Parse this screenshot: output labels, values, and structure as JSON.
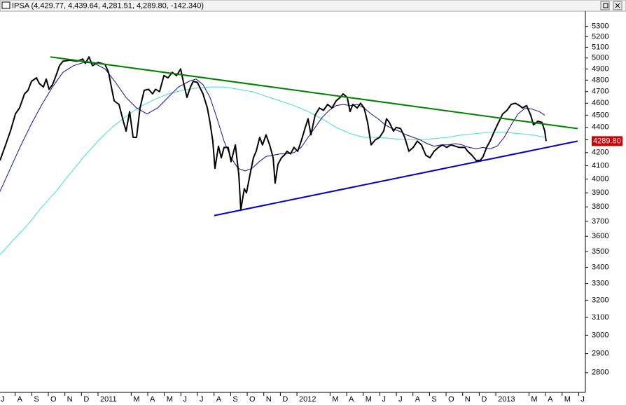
{
  "chart_data": {
    "type": "line",
    "title": "IPSA (4,429.77, 4,439.64, 4,281.51, 4,289.80, -142.340)",
    "log_scale": true,
    "ylim": [
      2700,
      5450
    ],
    "yticks": [
      2800,
      2900,
      3000,
      3100,
      3200,
      3300,
      3400,
      3500,
      3600,
      3700,
      3800,
      3900,
      4000,
      4100,
      4200,
      4300,
      4400,
      4500,
      4600,
      4700,
      4800,
      4900,
      5000,
      5100,
      5200,
      5300
    ],
    "xlim": [
      0,
      35.32
    ],
    "xticks": [
      {
        "value": 0,
        "label": "J"
      },
      {
        "value": 1,
        "label": "A"
      },
      {
        "value": 2,
        "label": "S"
      },
      {
        "value": 3,
        "label": "O"
      },
      {
        "value": 4,
        "label": "N"
      },
      {
        "value": 5,
        "label": "D"
      },
      {
        "value": 6,
        "label": "2011"
      },
      {
        "value": 8,
        "label": "M"
      },
      {
        "value": 9,
        "label": "A"
      },
      {
        "value": 10,
        "label": "M"
      },
      {
        "value": 11,
        "label": "J"
      },
      {
        "value": 12,
        "label": "J"
      },
      {
        "value": 13,
        "label": "A"
      },
      {
        "value": 14,
        "label": "S"
      },
      {
        "value": 15,
        "label": "O"
      },
      {
        "value": 16,
        "label": "N"
      },
      {
        "value": 17,
        "label": "D"
      },
      {
        "value": 18,
        "label": "2012"
      },
      {
        "value": 20,
        "label": "M"
      },
      {
        "value": 21,
        "label": "A"
      },
      {
        "value": 22,
        "label": "M"
      },
      {
        "value": 23,
        "label": "J"
      },
      {
        "value": 24,
        "label": "J"
      },
      {
        "value": 25,
        "label": "A"
      },
      {
        "value": 26,
        "label": "S"
      },
      {
        "value": 27,
        "label": "O"
      },
      {
        "value": 28,
        "label": "N"
      },
      {
        "value": 29,
        "label": "D"
      },
      {
        "value": 30,
        "label": "2013"
      },
      {
        "value": 32,
        "label": "M"
      },
      {
        "value": 33,
        "label": "A"
      },
      {
        "value": 34,
        "label": "M"
      },
      {
        "value": 35,
        "label": "J"
      }
    ],
    "price_tag": {
      "value": 4289.8,
      "label": "4289.80",
      "color": "#cc0000"
    },
    "series": [
      {
        "color": "#40e0d0",
        "width": 1,
        "x": [
          0,
          0.85,
          1.69,
          2.53,
          3.38,
          4.22,
          5.07,
          5.91,
          6.76,
          7.6,
          8.45,
          9.29,
          10.14,
          10.98,
          11.83,
          12.67,
          13.52,
          14.36,
          15.21,
          16.05,
          16.9,
          17.74,
          18.59,
          19.43,
          20.28,
          21.12,
          21.97,
          22.81,
          23.66,
          24.5,
          25.35,
          26.19,
          27.04,
          27.88,
          28.73,
          29.57,
          30.42,
          31.26,
          32.11,
          32.87
        ],
        "values": [
          3480,
          3580,
          3680,
          3800,
          3910,
          4040,
          4170,
          4290,
          4400,
          4490,
          4570,
          4630,
          4680,
          4710,
          4730,
          4740,
          4740,
          4720,
          4700,
          4660,
          4620,
          4580,
          4530,
          4470,
          4400,
          4350,
          4320,
          4320,
          4310,
          4300,
          4300,
          4310,
          4320,
          4340,
          4350,
          4360,
          4360,
          4350,
          4340,
          4320
        ]
      },
      {
        "color": "#1010a0",
        "width": 1,
        "x": [
          0,
          0.63,
          1.27,
          1.9,
          2.53,
          3.17,
          3.8,
          4.44,
          5.07,
          5.7,
          6.34,
          6.97,
          7.6,
          8.24,
          8.87,
          9.51,
          10.14,
          10.77,
          11.41,
          11.83,
          12.25,
          12.67,
          13.1,
          13.52,
          13.94,
          14.36,
          14.79,
          15.21,
          15.63,
          16.05,
          16.48,
          16.9,
          17.32,
          17.74,
          18.17,
          18.59,
          19.01,
          19.43,
          19.86,
          20.28,
          20.7,
          21.12,
          21.55,
          21.97,
          22.39,
          22.81,
          23.24,
          23.66,
          24.08,
          24.5,
          24.93,
          25.35,
          25.77,
          26.19,
          26.62,
          27.04,
          27.46,
          27.88,
          28.31,
          28.73,
          29.15,
          29.57,
          30,
          30.42,
          30.84,
          31.26,
          31.69,
          32.11,
          32.53,
          32.87
        ],
        "values": [
          3910,
          4080,
          4260,
          4430,
          4590,
          4740,
          4870,
          4930,
          4960,
          4950,
          4900,
          4780,
          4650,
          4560,
          4510,
          4560,
          4650,
          4740,
          4790,
          4810,
          4760,
          4650,
          4470,
          4290,
          4160,
          4080,
          4060,
          4080,
          4130,
          4170,
          4180,
          4190,
          4190,
          4200,
          4240,
          4320,
          4400,
          4480,
          4540,
          4580,
          4590,
          4580,
          4590,
          4560,
          4510,
          4470,
          4420,
          4390,
          4370,
          4340,
          4320,
          4300,
          4270,
          4250,
          4260,
          4260,
          4270,
          4260,
          4240,
          4230,
          4240,
          4230,
          4250,
          4320,
          4420,
          4510,
          4560,
          4550,
          4530,
          4500
        ]
      },
      {
        "color": "#000000",
        "width": 2,
        "x": [
          0,
          0.34,
          0.63,
          0.93,
          1.18,
          1.48,
          1.69,
          1.9,
          2.2,
          2.37,
          2.62,
          2.79,
          2.96,
          3.17,
          3.38,
          3.59,
          3.8,
          4.22,
          4.65,
          4.99,
          5.15,
          5.37,
          5.58,
          5.91,
          6.34,
          6.55,
          6.76,
          6.89,
          7.18,
          7.44,
          7.61,
          7.82,
          8.03,
          8.24,
          8.45,
          8.7,
          8.96,
          9.21,
          9.38,
          9.63,
          9.89,
          10.14,
          10.39,
          10.65,
          10.9,
          11.07,
          11.28,
          11.49,
          11.66,
          11.91,
          12.25,
          12.51,
          12.67,
          12.84,
          12.97,
          13.18,
          13.35,
          13.52,
          13.77,
          13.94,
          14.2,
          14.41,
          14.53,
          14.74,
          14.87,
          15.08,
          15.29,
          15.46,
          15.67,
          15.84,
          16.05,
          16.27,
          16.48,
          16.6,
          16.77,
          16.98,
          17.15,
          17.32,
          17.53,
          17.74,
          17.96,
          18.17,
          18.42,
          18.59,
          18.76,
          19.01,
          19.27,
          19.52,
          19.77,
          20.03,
          20.28,
          20.53,
          20.7,
          20.95,
          21.12,
          21.29,
          21.55,
          21.76,
          21.97,
          22.18,
          22.39,
          22.64,
          22.9,
          23.15,
          23.32,
          23.49,
          23.74,
          23.91,
          24.17,
          24.42,
          24.67,
          24.93,
          25.18,
          25.43,
          25.69,
          25.94,
          26.19,
          26.45,
          26.7,
          26.95,
          27.21,
          27.46,
          27.71,
          28.05,
          28.22,
          28.47,
          28.73,
          28.98,
          29.15,
          29.36,
          29.57,
          29.83,
          30.08,
          30.33,
          30.59,
          30.84,
          31.09,
          31.35,
          31.52,
          31.77,
          32.02,
          32.19,
          32.45,
          32.7,
          32.87,
          32.95
        ],
        "values": [
          4140,
          4260,
          4370,
          4510,
          4560,
          4680,
          4710,
          4790,
          4820,
          4770,
          4740,
          4810,
          4720,
          4760,
          4840,
          4930,
          4970,
          4980,
          4970,
          4990,
          4950,
          5010,
          4930,
          4960,
          4940,
          4870,
          4710,
          4620,
          4590,
          4450,
          4370,
          4530,
          4320,
          4320,
          4560,
          4710,
          4720,
          4680,
          4720,
          4700,
          4840,
          4820,
          4870,
          4840,
          4900,
          4780,
          4650,
          4740,
          4790,
          4780,
          4680,
          4560,
          4440,
          4290,
          4080,
          4250,
          4160,
          4240,
          4240,
          4130,
          4260,
          4030,
          3780,
          3930,
          3900,
          4030,
          4160,
          4210,
          4320,
          4260,
          4340,
          4260,
          4160,
          3970,
          4110,
          4160,
          4180,
          4210,
          4190,
          4240,
          4210,
          4290,
          4400,
          4470,
          4340,
          4500,
          4560,
          4540,
          4590,
          4560,
          4620,
          4650,
          4680,
          4650,
          4530,
          4590,
          4560,
          4600,
          4560,
          4440,
          4260,
          4300,
          4320,
          4370,
          4470,
          4440,
          4370,
          4400,
          4390,
          4320,
          4210,
          4240,
          4290,
          4260,
          4180,
          4160,
          4210,
          4240,
          4260,
          4240,
          4260,
          4250,
          4240,
          4240,
          4210,
          4180,
          4140,
          4140,
          4170,
          4240,
          4290,
          4370,
          4440,
          4510,
          4540,
          4590,
          4600,
          4580,
          4560,
          4580,
          4500,
          4420,
          4450,
          4440,
          4370,
          4289.8
        ]
      },
      {
        "color": "#008000",
        "width": 2,
        "x": [
          3.04,
          34.85
        ],
        "values": [
          5010,
          4390
        ]
      },
      {
        "color": "#0000cc",
        "width": 2,
        "x": [
          12.93,
          34.85
        ],
        "values": [
          3740,
          4290
        ]
      }
    ]
  }
}
